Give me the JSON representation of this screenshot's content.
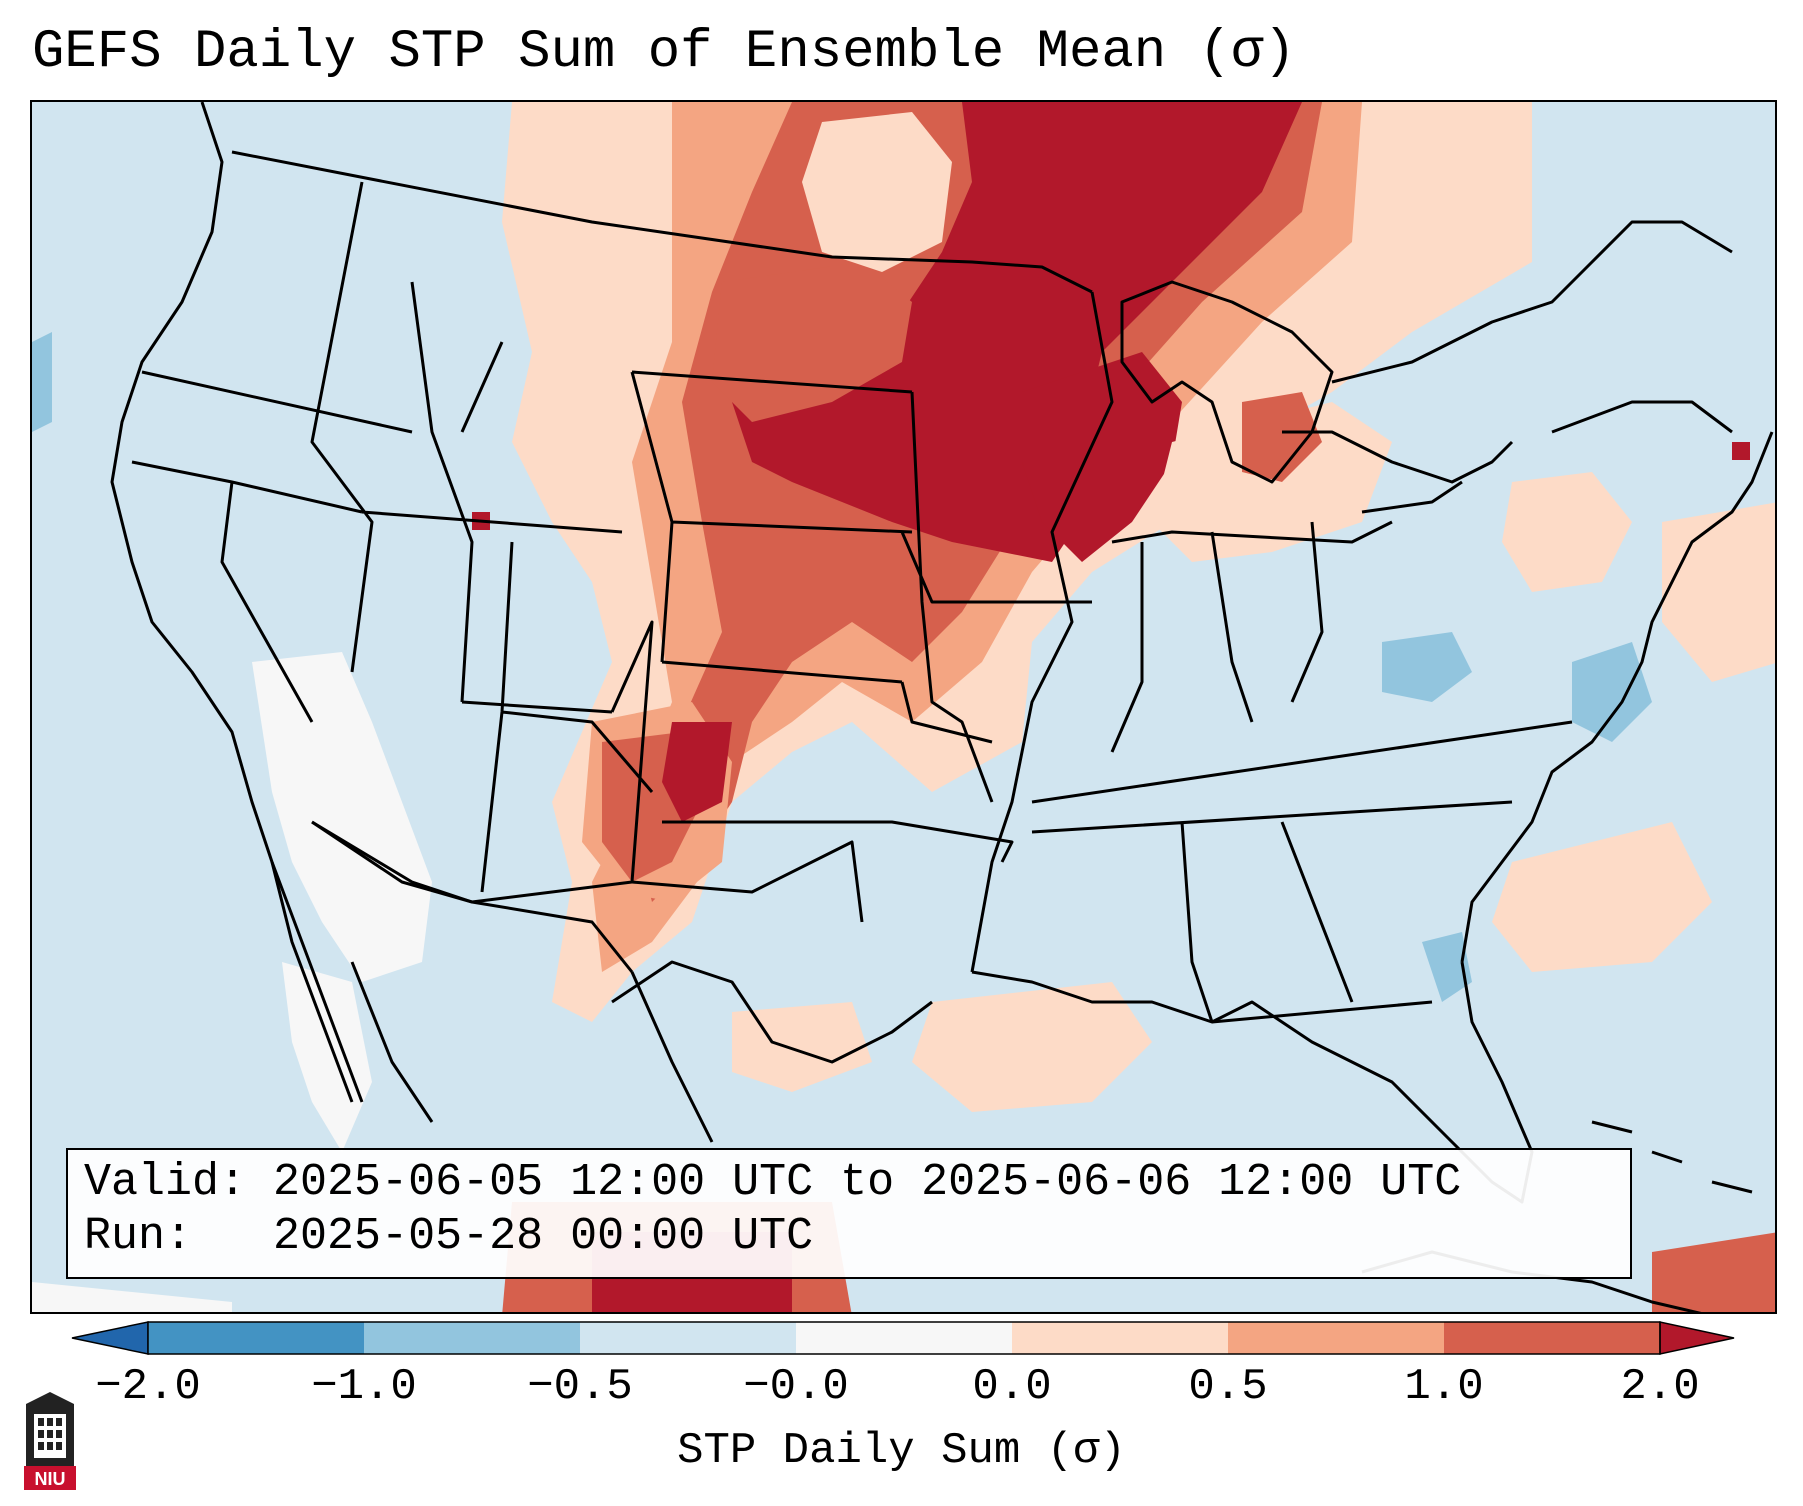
{
  "title": "GEFS Daily STP Sum of Ensemble Mean (σ)",
  "info_box": {
    "valid_label": "Valid:",
    "valid_value": "2025-06-05 12:00 UTC to 2025-06-06 12:00 UTC",
    "run_label": "Run:",
    "run_value": "2025-05-28 00:00 UTC"
  },
  "colorbar": {
    "label": "STP Daily Sum (σ)",
    "ticks": [
      "−2.0",
      "−1.0",
      "−0.5",
      "−0.0",
      "0.0",
      "0.5",
      "1.0",
      "2.0"
    ],
    "bin_colors": [
      "#4393c3",
      "#92c5de",
      "#d1e5f0",
      "#f7f7f7",
      "#fddbc7",
      "#f4a582",
      "#d6604d"
    ],
    "under_color": "#2166ac",
    "over_color": "#b2182b"
  },
  "map": {
    "background_color": "#d1e5f0",
    "legend_colors": {
      "low_pos": "#fddbc7",
      "mid_pos": "#f4a582",
      "high_pos": "#d6604d",
      "max_pos": "#b2182b",
      "neutral": "#f7f7f7",
      "neg": "#92c5de"
    }
  },
  "logo": {
    "text": "NIU"
  }
}
